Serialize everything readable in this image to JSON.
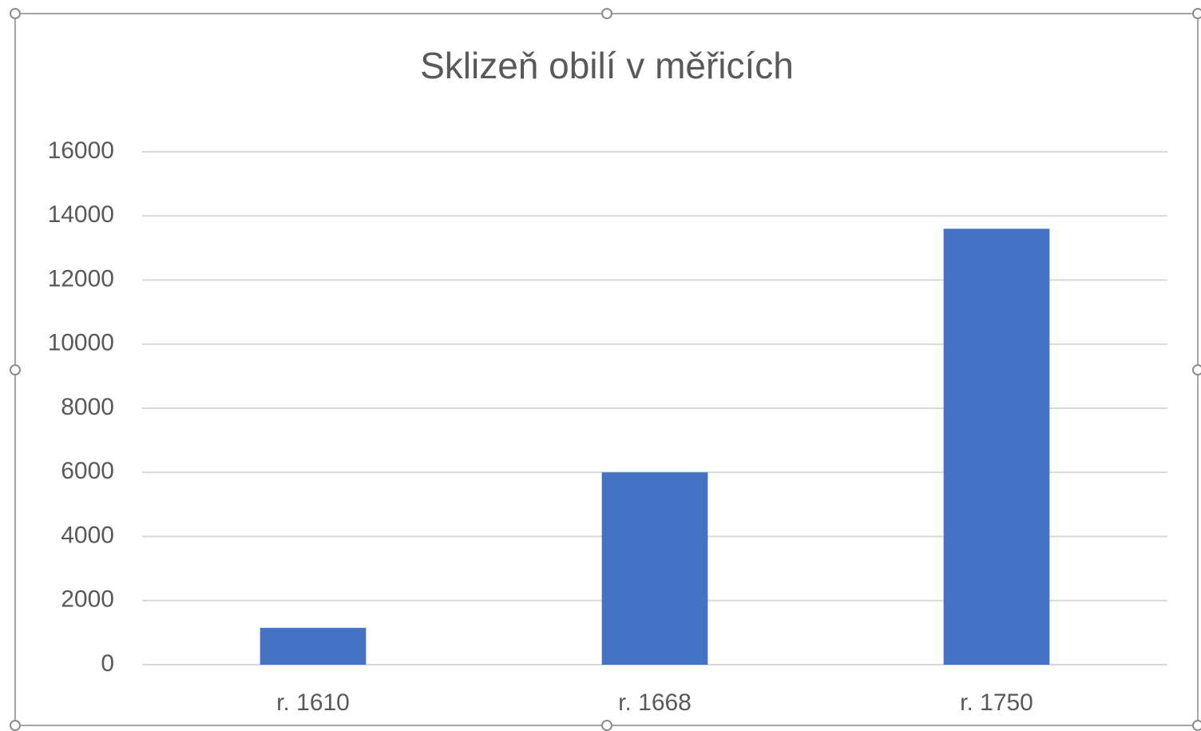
{
  "chart_data": {
    "type": "bar",
    "title": "Sklizeň obilí v měřicích",
    "categories": [
      "r. 1610",
      "r. 1668",
      "r. 1750"
    ],
    "values": [
      1150,
      6000,
      13600
    ],
    "color": "#4472c4",
    "ylim": [
      0,
      16000
    ],
    "yticks": [
      0,
      2000,
      4000,
      6000,
      8000,
      10000,
      12000,
      14000,
      16000
    ],
    "grid": true
  }
}
